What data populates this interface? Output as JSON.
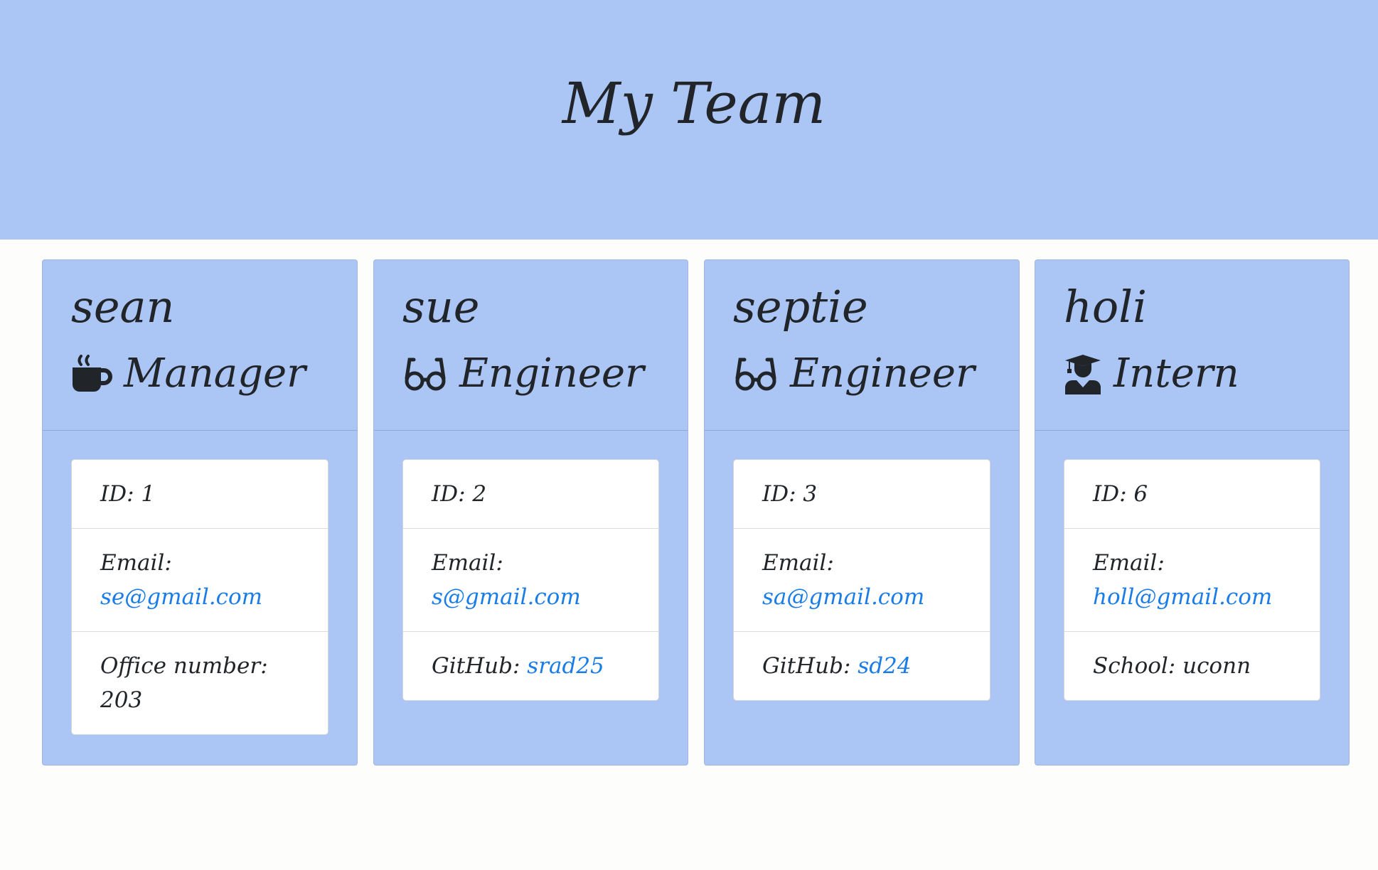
{
  "header": {
    "title": "My Team"
  },
  "employees": [
    {
      "name": "sean",
      "role": "Manager",
      "role_icon": "coffee-mug-icon",
      "id_label": "ID: 1",
      "email_label": "Email:",
      "email": "se@gmail.com",
      "extra_label": "Office number:",
      "extra_value": "203"
    },
    {
      "name": "sue",
      "role": "Engineer",
      "role_icon": "glasses-icon",
      "id_label": "ID: 2",
      "email_label": "Email:",
      "email": "s@gmail.com",
      "extra_label": "GitHub:",
      "extra_value": "srad25"
    },
    {
      "name": "septie",
      "role": "Engineer",
      "role_icon": "glasses-icon",
      "id_label": "ID: 3",
      "email_label": "Email:",
      "email": "sa@gmail.com",
      "extra_label": "GitHub:",
      "extra_value": "sd24"
    },
    {
      "name": "holi",
      "role": "Intern",
      "role_icon": "graduate-icon",
      "id_label": "ID: 6",
      "email_label": "Email:",
      "email": "holl@gmail.com",
      "extra_label": "School:",
      "extra_value": "uconn"
    }
  ],
  "colors": {
    "card_bg": "#abc5f4",
    "link": "#1a7ce6",
    "text": "#212529"
  }
}
